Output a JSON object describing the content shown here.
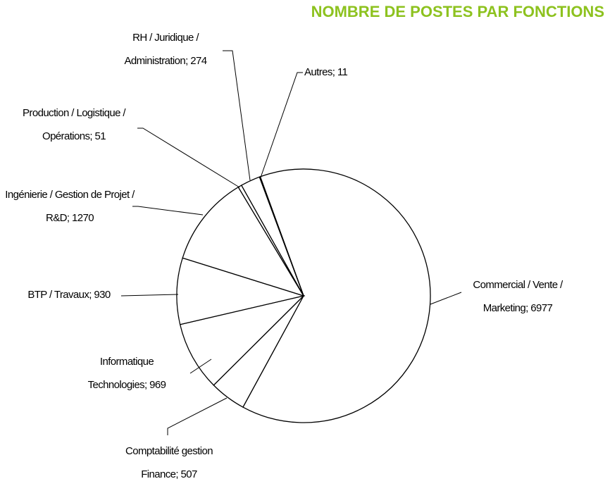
{
  "chart_data": {
    "type": "pie",
    "title": "NOMBRE DE POSTES PAR FONCTIONS",
    "values": [
      6977,
      507,
      969,
      930,
      1270,
      51,
      274,
      11
    ],
    "value_labels": [
      "Commercial / Vente / Marketing; 6977",
      "Comptabilité gestion Finance; 507",
      "Informatique Technologies; 969",
      "BTP / Travaux; 930",
      "Ingénierie / Gestion de Projet / R&D; 1270",
      "Production / Logistique / Opérations; 51",
      "RH / Juridique / Administration; 274",
      "Autres; 11"
    ],
    "color": "#ffffff",
    "edgecolor": "#000000"
  }
}
